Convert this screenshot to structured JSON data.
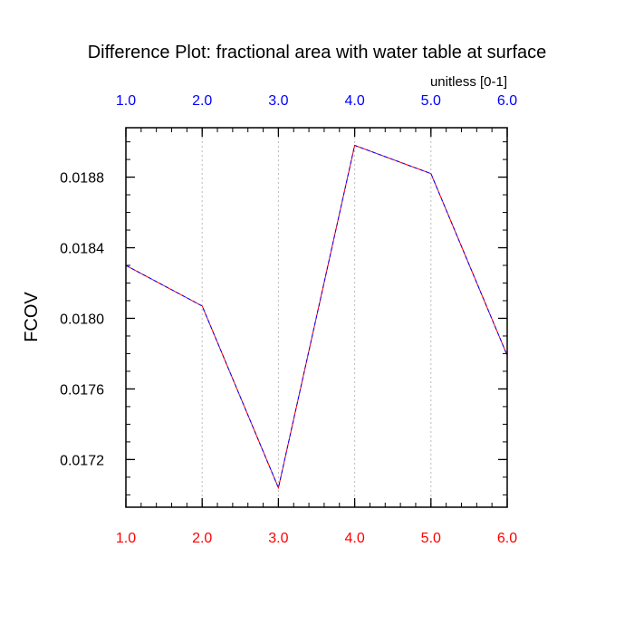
{
  "chart_data": {
    "type": "line",
    "title": "Difference Plot: fractional area with water table at surface",
    "units_label": "unitless [0-1]",
    "ylabel": "FCOV",
    "xlabel": "",
    "x": [
      1.0,
      2.0,
      3.0,
      4.0,
      5.0,
      6.0
    ],
    "xlim": [
      1.0,
      6.0
    ],
    "ylim": [
      0.01693,
      0.01908
    ],
    "x_ticks": [
      1.0,
      2.0,
      3.0,
      4.0,
      5.0,
      6.0
    ],
    "x_tick_labels_bottom": [
      "1.0",
      "2.0",
      "3.0",
      "4.0",
      "5.0",
      "6.0"
    ],
    "x_tick_labels_top": [
      "1.0",
      "2.0",
      "3.0",
      "4.0",
      "5.0",
      "6.0"
    ],
    "y_ticks": [
      0.0172,
      0.0176,
      0.018,
      0.0184,
      0.0188
    ],
    "y_tick_labels": [
      "0.0172",
      "0.0176",
      "0.0180",
      "0.0184",
      "0.0188"
    ],
    "grid": "vertical dotted at x ticks",
    "series": [
      {
        "values": [
          0.0183,
          0.01807,
          0.01704,
          0.01898,
          0.01882,
          0.01779
        ],
        "color": "#ff0000",
        "style": "solid"
      },
      {
        "values": [
          0.0183,
          0.01807,
          0.01704,
          0.01898,
          0.01882,
          0.01779
        ],
        "color": "#0000ff",
        "style": "dashed"
      }
    ],
    "colors": {
      "bottom_axis_labels": "#ff0000",
      "top_axis_labels": "#0000ff",
      "text": "#000000",
      "grid": "#bbbbbb"
    }
  }
}
